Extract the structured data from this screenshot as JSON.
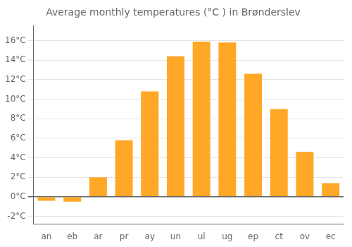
{
  "chart_data": {
    "type": "bar",
    "title": "Average monthly temperatures (°C ) in Brønderslev",
    "categories": [
      "an",
      "eb",
      "ar",
      "pr",
      "ay",
      "un",
      "ul",
      "ug",
      "ep",
      "ct",
      "ov",
      "ec"
    ],
    "values": [
      -0.4,
      -0.5,
      2.0,
      5.8,
      10.8,
      14.4,
      15.9,
      15.8,
      12.6,
      9.0,
      4.6,
      1.4
    ],
    "color": "#FFA726",
    "ylim": [
      -2.8,
      17.5
    ],
    "yticks": [
      {
        "value": -2,
        "label": "-2°C"
      },
      {
        "value": 0,
        "label": "0°C"
      },
      {
        "value": 2,
        "label": "2°C"
      },
      {
        "value": 4,
        "label": "4°C"
      },
      {
        "value": 6,
        "label": "6°C"
      },
      {
        "value": 8,
        "label": "8°C"
      },
      {
        "value": 10,
        "label": "10°C"
      },
      {
        "value": 12,
        "label": "12°C"
      },
      {
        "value": 14,
        "label": "14°C"
      },
      {
        "value": 16,
        "label": "16°C"
      }
    ],
    "grid": true
  }
}
